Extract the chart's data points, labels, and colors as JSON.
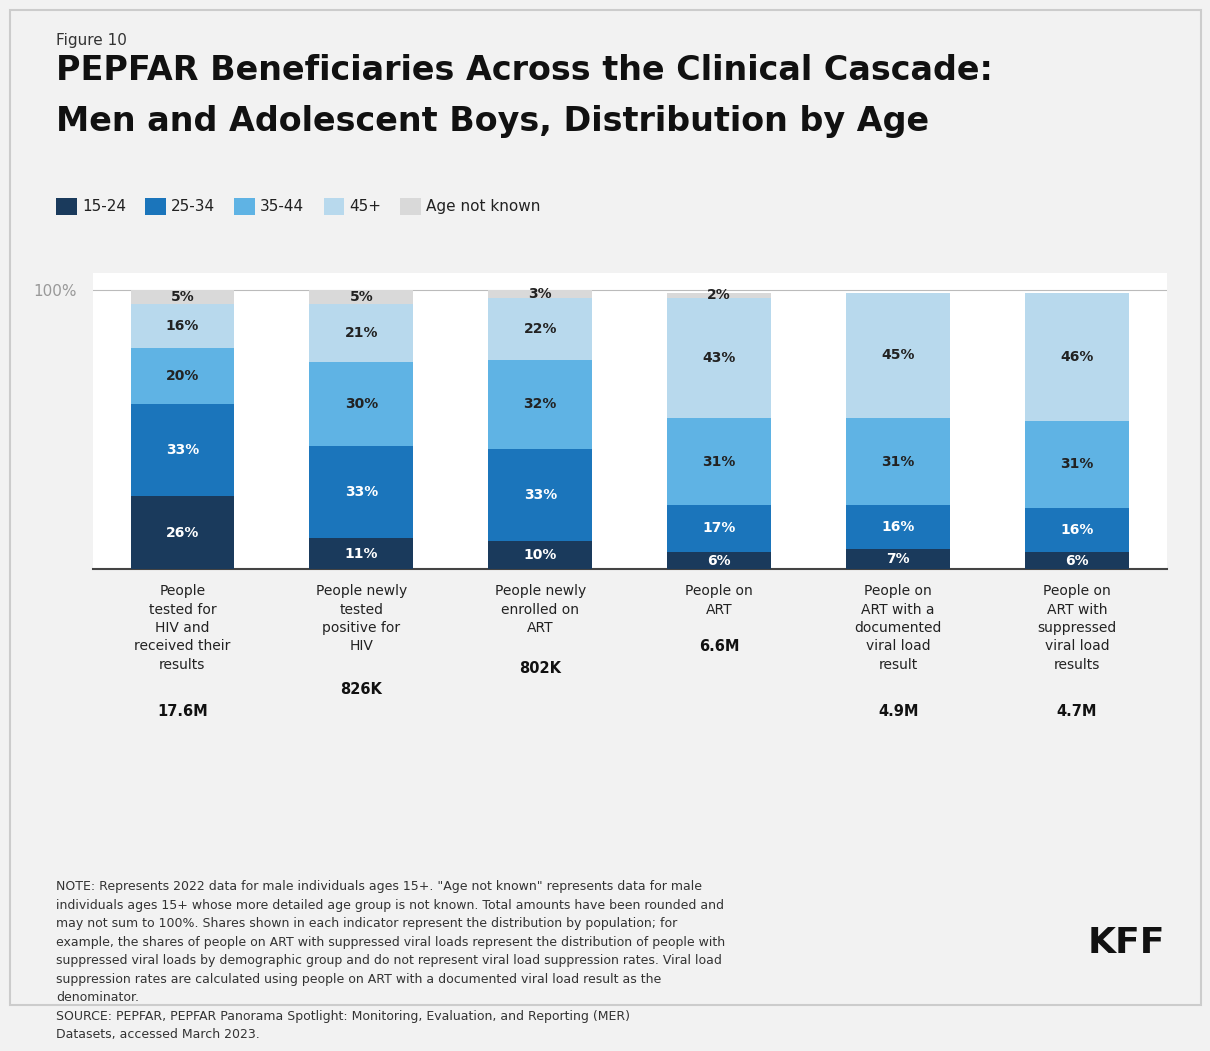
{
  "figure_label": "Figure 10",
  "title_line1": "PEPFAR Beneficiaries Across the Clinical Cascade:",
  "title_line2": "Men and Adolescent Boys, Distribution by Age",
  "colors": {
    "age_15_24": "#1a3a5c",
    "age_25_34": "#1b75bb",
    "age_35_44": "#5fb3e4",
    "age_45plus": "#b8d9ed",
    "age_unknown": "#d9d9d9"
  },
  "legend_labels": [
    "15-24",
    "25-34",
    "35-44",
    "45+",
    "Age not known"
  ],
  "cat_labels_normal": [
    "People\ntested for\nHIV and\nreceived their\nresults",
    "People newly\ntested\npositive for\nHIV",
    "People newly\nenrolled on\nART",
    "People on\nART",
    "People on\nART with a\ndocumented\nviral load\nresult",
    "People on\nART with\nsuppressed\nviral load\nresults"
  ],
  "cat_labels_bold": [
    "17.6M",
    "826K",
    "802K",
    "6.6M",
    "4.9M",
    "4.7M"
  ],
  "data": {
    "age_15_24": [
      26,
      11,
      10,
      6,
      7,
      6
    ],
    "age_25_34": [
      33,
      33,
      33,
      17,
      16,
      16
    ],
    "age_35_44": [
      20,
      30,
      32,
      31,
      31,
      31
    ],
    "age_45plus": [
      16,
      21,
      22,
      43,
      45,
      46
    ],
    "age_unknown": [
      5,
      5,
      3,
      2,
      0,
      0
    ]
  },
  "bar_text_colors": {
    "age_15_24": "#ffffff",
    "age_25_34": "#ffffff",
    "age_35_44": "#222222",
    "age_45plus": "#222222",
    "age_unknown": "#222222"
  },
  "note_text": "NOTE: Represents 2022 data for male individuals ages 15+. \"Age not known\" represents data for male\nindividuals ages 15+ whose more detailed age group is not known. Total amounts have been rounded and\nmay not sum to 100%. Shares shown in each indicator represent the distribution by population; for\nexample, the shares of people on ART with suppressed viral loads represent the distribution of people with\nsuppressed viral loads by demographic group and do not represent viral load suppression rates. Viral load\nsuppression rates are calculated using people on ART with a documented viral load result as the\ndenominator.\nSOURCE: PEPFAR, PEPFAR Panorama Spotlight: Monitoring, Evaluation, and Reporting (MER)\nDatasets, accessed March 2023.",
  "background_color": "#f2f2f2",
  "inner_background": "#ffffff"
}
